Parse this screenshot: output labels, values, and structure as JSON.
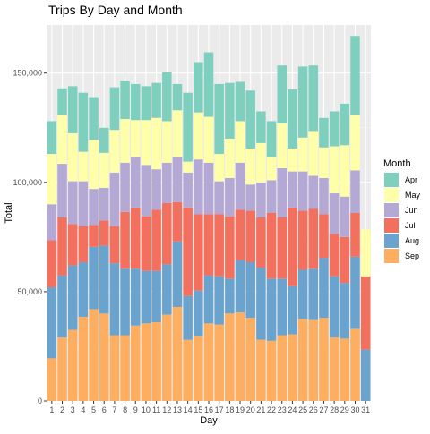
{
  "chart_data": {
    "type": "bar",
    "stacked": true,
    "title": "Trips By Day and Month",
    "xlabel": "Day",
    "ylabel": "Total",
    "legend_title": "Month",
    "legend_position": "right",
    "grid": true,
    "ylim": [
      0,
      172000
    ],
    "yticks": [
      0,
      50000,
      100000,
      150000
    ],
    "ytick_labels": [
      "0",
      "50,000",
      "100,000",
      "150,000"
    ],
    "categories": [
      "1",
      "2",
      "3",
      "4",
      "5",
      "6",
      "7",
      "8",
      "9",
      "10",
      "11",
      "12",
      "13",
      "14",
      "15",
      "16",
      "17",
      "18",
      "19",
      "20",
      "21",
      "22",
      "23",
      "24",
      "25",
      "26",
      "27",
      "28",
      "29",
      "30",
      "31"
    ],
    "series": [
      {
        "name": "Sep",
        "color": "#FDAE61",
        "values": [
          19500,
          29000,
          32500,
          38500,
          42000,
          40000,
          30000,
          30000,
          34500,
          35500,
          36000,
          39500,
          43000,
          28000,
          29500,
          35500,
          35000,
          40000,
          40500,
          38000,
          28000,
          27500,
          30000,
          30500,
          37500,
          37000,
          38000,
          29000,
          28500,
          33000,
          0
        ]
      },
      {
        "name": "Aug",
        "color": "#6BA3CF",
        "values": [
          32500,
          28500,
          29500,
          25000,
          28500,
          31000,
          33000,
          30500,
          26000,
          24000,
          23500,
          23000,
          30000,
          20000,
          21000,
          22000,
          22000,
          16000,
          24000,
          25500,
          33000,
          28500,
          26000,
          22000,
          22500,
          23500,
          27500,
          28000,
          25500,
          33000,
          23500
        ]
      },
      {
        "name": "Jul",
        "color": "#F36F5E",
        "values": [
          21500,
          26500,
          19000,
          16500,
          10000,
          11500,
          17000,
          26000,
          28000,
          25000,
          28000,
          28000,
          18000,
          40500,
          35000,
          28000,
          28500,
          28500,
          23000,
          23500,
          23000,
          30000,
          28000,
          36000,
          27000,
          27500,
          20000,
          19500,
          21000,
          20000,
          33500
        ]
      },
      {
        "name": "Jun",
        "color": "#B3A9D4",
        "values": [
          16500,
          24500,
          19500,
          20500,
          16500,
          15000,
          24500,
          22500,
          23000,
          23500,
          18500,
          18500,
          20500,
          16000,
          25000,
          23500,
          15000,
          17500,
          21500,
          12000,
          16000,
          15000,
          22500,
          16500,
          18000,
          15000,
          16500,
          18500,
          18500,
          19500,
          0
        ]
      },
      {
        "name": "May",
        "color": "#FFFFAA",
        "values": [
          23000,
          22500,
          22000,
          13500,
          22500,
          16000,
          19500,
          20000,
          17000,
          20500,
          23500,
          19000,
          21500,
          5000,
          21500,
          21000,
          12500,
          18000,
          19000,
          16500,
          18000,
          10500,
          20500,
          10500,
          15500,
          20500,
          14000,
          21500,
          23500,
          25500,
          21500
        ]
      },
      {
        "name": "Apr",
        "color": "#7FCFBE",
        "values": [
          15000,
          12000,
          21500,
          27000,
          19500,
          11500,
          19500,
          17500,
          16500,
          15500,
          16000,
          22500,
          12000,
          31500,
          23000,
          29500,
          32000,
          25500,
          18000,
          26500,
          14500,
          16500,
          26500,
          27000,
          32500,
          30000,
          13500,
          16000,
          19000,
          36000,
          0
        ]
      }
    ]
  }
}
